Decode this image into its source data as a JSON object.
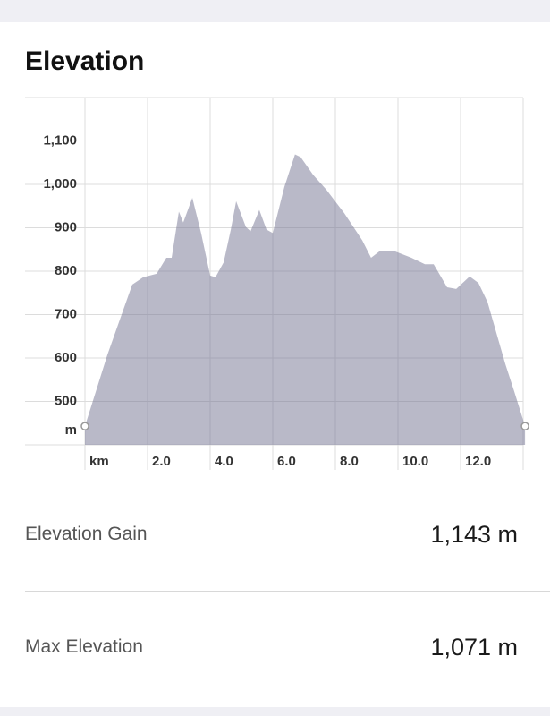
{
  "title": "Elevation",
  "chart_data": {
    "type": "area",
    "color": "rgba(120,120,150,0.52)",
    "x_label": "km",
    "y_label": "m",
    "x": [
      0,
      0.71,
      1.51,
      1.86,
      2.29,
      2.6,
      2.77,
      3.0,
      3.14,
      3.43,
      3.71,
      4.0,
      4.17,
      4.43,
      4.66,
      4.83,
      5.14,
      5.29,
      5.57,
      5.8,
      6.0,
      6.37,
      6.71,
      6.89,
      7.29,
      7.71,
      8.29,
      8.86,
      9.14,
      9.43,
      9.86,
      10.43,
      10.86,
      11.14,
      11.57,
      11.86,
      12.29,
      12.57,
      12.86,
      13.43,
      13.71,
      14.06
    ],
    "values": [
      443,
      606,
      769,
      786,
      794,
      831,
      831,
      937,
      912,
      969,
      888,
      790,
      786,
      820,
      896,
      961,
      902,
      892,
      941,
      896,
      888,
      994,
      1069,
      1063,
      1022,
      988,
      933,
      871,
      831,
      847,
      847,
      831,
      816,
      816,
      763,
      759,
      788,
      773,
      729,
      586,
      524,
      443
    ],
    "xlim": [
      0,
      14.1
    ],
    "ylim": [
      400,
      1200
    ],
    "xticks": [
      {
        "value": 2,
        "label": "2.0"
      },
      {
        "value": 4,
        "label": "4.0"
      },
      {
        "value": 6,
        "label": "6.0"
      },
      {
        "value": 8,
        "label": "8.0"
      },
      {
        "value": 10,
        "label": "10.0"
      },
      {
        "value": 12,
        "label": "12.0"
      }
    ],
    "yticks": [
      500,
      600,
      700,
      800,
      900,
      {
        "value": 1000,
        "label": "1,000"
      },
      {
        "value": 1100,
        "label": "1,100"
      }
    ],
    "grid": true
  },
  "stats": [
    {
      "label": "Elevation Gain",
      "value": "1,143 m"
    },
    {
      "label": "Max Elevation",
      "value": "1,071 m"
    }
  ]
}
